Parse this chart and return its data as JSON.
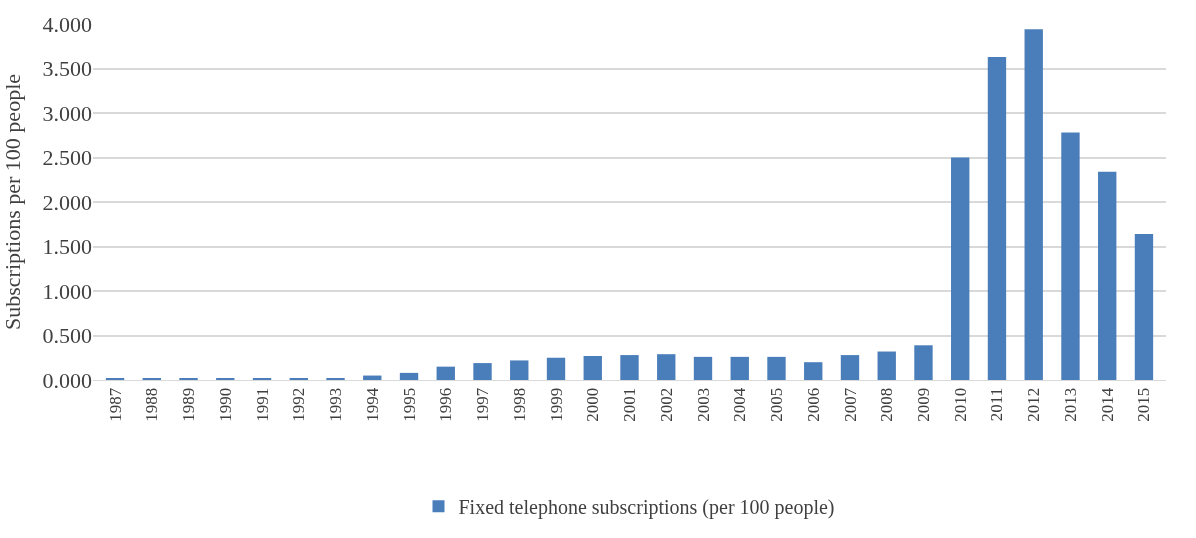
{
  "chart_data": {
    "type": "bar",
    "ylabel": "Subscriptions per 100 people",
    "categories": [
      "1987",
      "1988",
      "1989",
      "1990",
      "1991",
      "1992",
      "1993",
      "1994",
      "1995",
      "1996",
      "1997",
      "1998",
      "1999",
      "2000",
      "2001",
      "2002",
      "2003",
      "2004",
      "2005",
      "2006",
      "2007",
      "2008",
      "2009",
      "2010",
      "2011",
      "2012",
      "2013",
      "2014",
      "2015"
    ],
    "series": [
      {
        "name": "Fixed telephone subscriptions (per 100 people)",
        "color": "#4a7ebb",
        "values": [
          0.02,
          0.02,
          0.02,
          0.02,
          0.02,
          0.02,
          0.02,
          0.05,
          0.08,
          0.15,
          0.19,
          0.22,
          0.25,
          0.27,
          0.28,
          0.29,
          0.26,
          0.26,
          0.26,
          0.2,
          0.28,
          0.32,
          0.39,
          2.5,
          3.63,
          3.94,
          2.78,
          2.34,
          1.64
        ]
      }
    ],
    "ylim": [
      0,
      4
    ],
    "yticks": [
      {
        "value": 0,
        "label": "0.000"
      },
      {
        "value": 0.5,
        "label": "0.500"
      },
      {
        "value": 1,
        "label": "1.000"
      },
      {
        "value": 1.5,
        "label": "1.500"
      },
      {
        "value": 2,
        "label": "2.000"
      },
      {
        "value": 2.5,
        "label": "2.500"
      },
      {
        "value": 3,
        "label": "3.000"
      },
      {
        "value": 3.5,
        "label": "3.500"
      },
      {
        "value": 4,
        "label": "4.000"
      }
    ],
    "grid": "y",
    "legend": "bottom"
  }
}
